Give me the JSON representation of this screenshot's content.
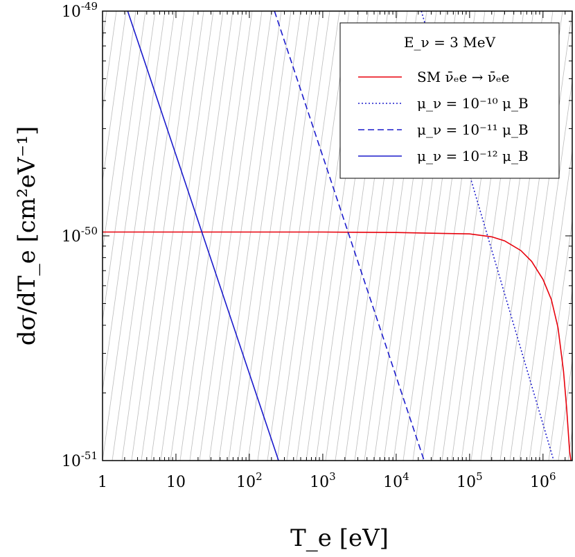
{
  "chart_data": {
    "type": "line",
    "title": "",
    "xlabel": "T_e   [eV]",
    "ylabel": "dσ/dT_e   [cm²eV⁻¹]",
    "x_scale": "log",
    "y_scale": "log",
    "xlim": [
      1,
      2500000
    ],
    "ylim": [
      1e-51,
      1e-49
    ],
    "x_ticks": [
      {
        "value": 1,
        "base": "1",
        "exp": ""
      },
      {
        "value": 10,
        "base": "10",
        "exp": ""
      },
      {
        "value": 100,
        "base": "10",
        "exp": "2"
      },
      {
        "value": 1000,
        "base": "10",
        "exp": "3"
      },
      {
        "value": 10000,
        "base": "10",
        "exp": "4"
      },
      {
        "value": 100000,
        "base": "10",
        "exp": "5"
      },
      {
        "value": 1000000,
        "base": "10",
        "exp": "6"
      }
    ],
    "y_ticks": [
      {
        "value": 1e-51,
        "base": "10",
        "exp": "-51"
      },
      {
        "value": 1e-50,
        "base": "10",
        "exp": "-50"
      },
      {
        "value": 1e-49,
        "base": "10",
        "exp": "-49"
      }
    ],
    "legend": {
      "title": "E_ν = 3 MeV",
      "position": "top-right"
    },
    "series": [
      {
        "name": "SM ν̄ₑe → ν̄ₑe",
        "color": "#e8000b",
        "dash": "solid",
        "x": [
          1,
          10,
          100,
          1000,
          10000,
          100000,
          200000,
          300000,
          500000,
          700000,
          1000000,
          1300000,
          1600000,
          1900000,
          2100000,
          2300000,
          2400000
        ],
        "y": [
          1.04e-50,
          1.04e-50,
          1.04e-50,
          1.04e-50,
          1.035e-50,
          1.02e-50,
          9.9e-51,
          9.5e-51,
          8.6e-51,
          7.7e-51,
          6.4e-51,
          5.2e-51,
          3.9e-51,
          2.5e-51,
          1.7e-51,
          1.1e-51,
          1e-51
        ]
      },
      {
        "name": "μ_ν = 10⁻¹⁰ μ_B",
        "color": "#1a1acc",
        "dash": "dotted",
        "x": [
          22000,
          1400000
        ],
        "y": [
          1e-49,
          1e-51
        ]
      },
      {
        "name": "μ_ν = 10⁻¹¹ μ_B",
        "color": "#1a1acc",
        "dash": "dashed",
        "x": [
          220,
          24000
        ],
        "y": [
          1e-49,
          1e-51
        ]
      },
      {
        "name": "μ_ν = 10⁻¹² μ_B",
        "color": "#1a1acc",
        "dash": "solid",
        "x": [
          2.2,
          250
        ],
        "y": [
          1e-49,
          1e-51
        ]
      }
    ],
    "grid": "background diagonal contours",
    "colors": {
      "sm": "#e8000b",
      "mag": "#1a1acc",
      "contour": "#bbbbbb"
    }
  }
}
